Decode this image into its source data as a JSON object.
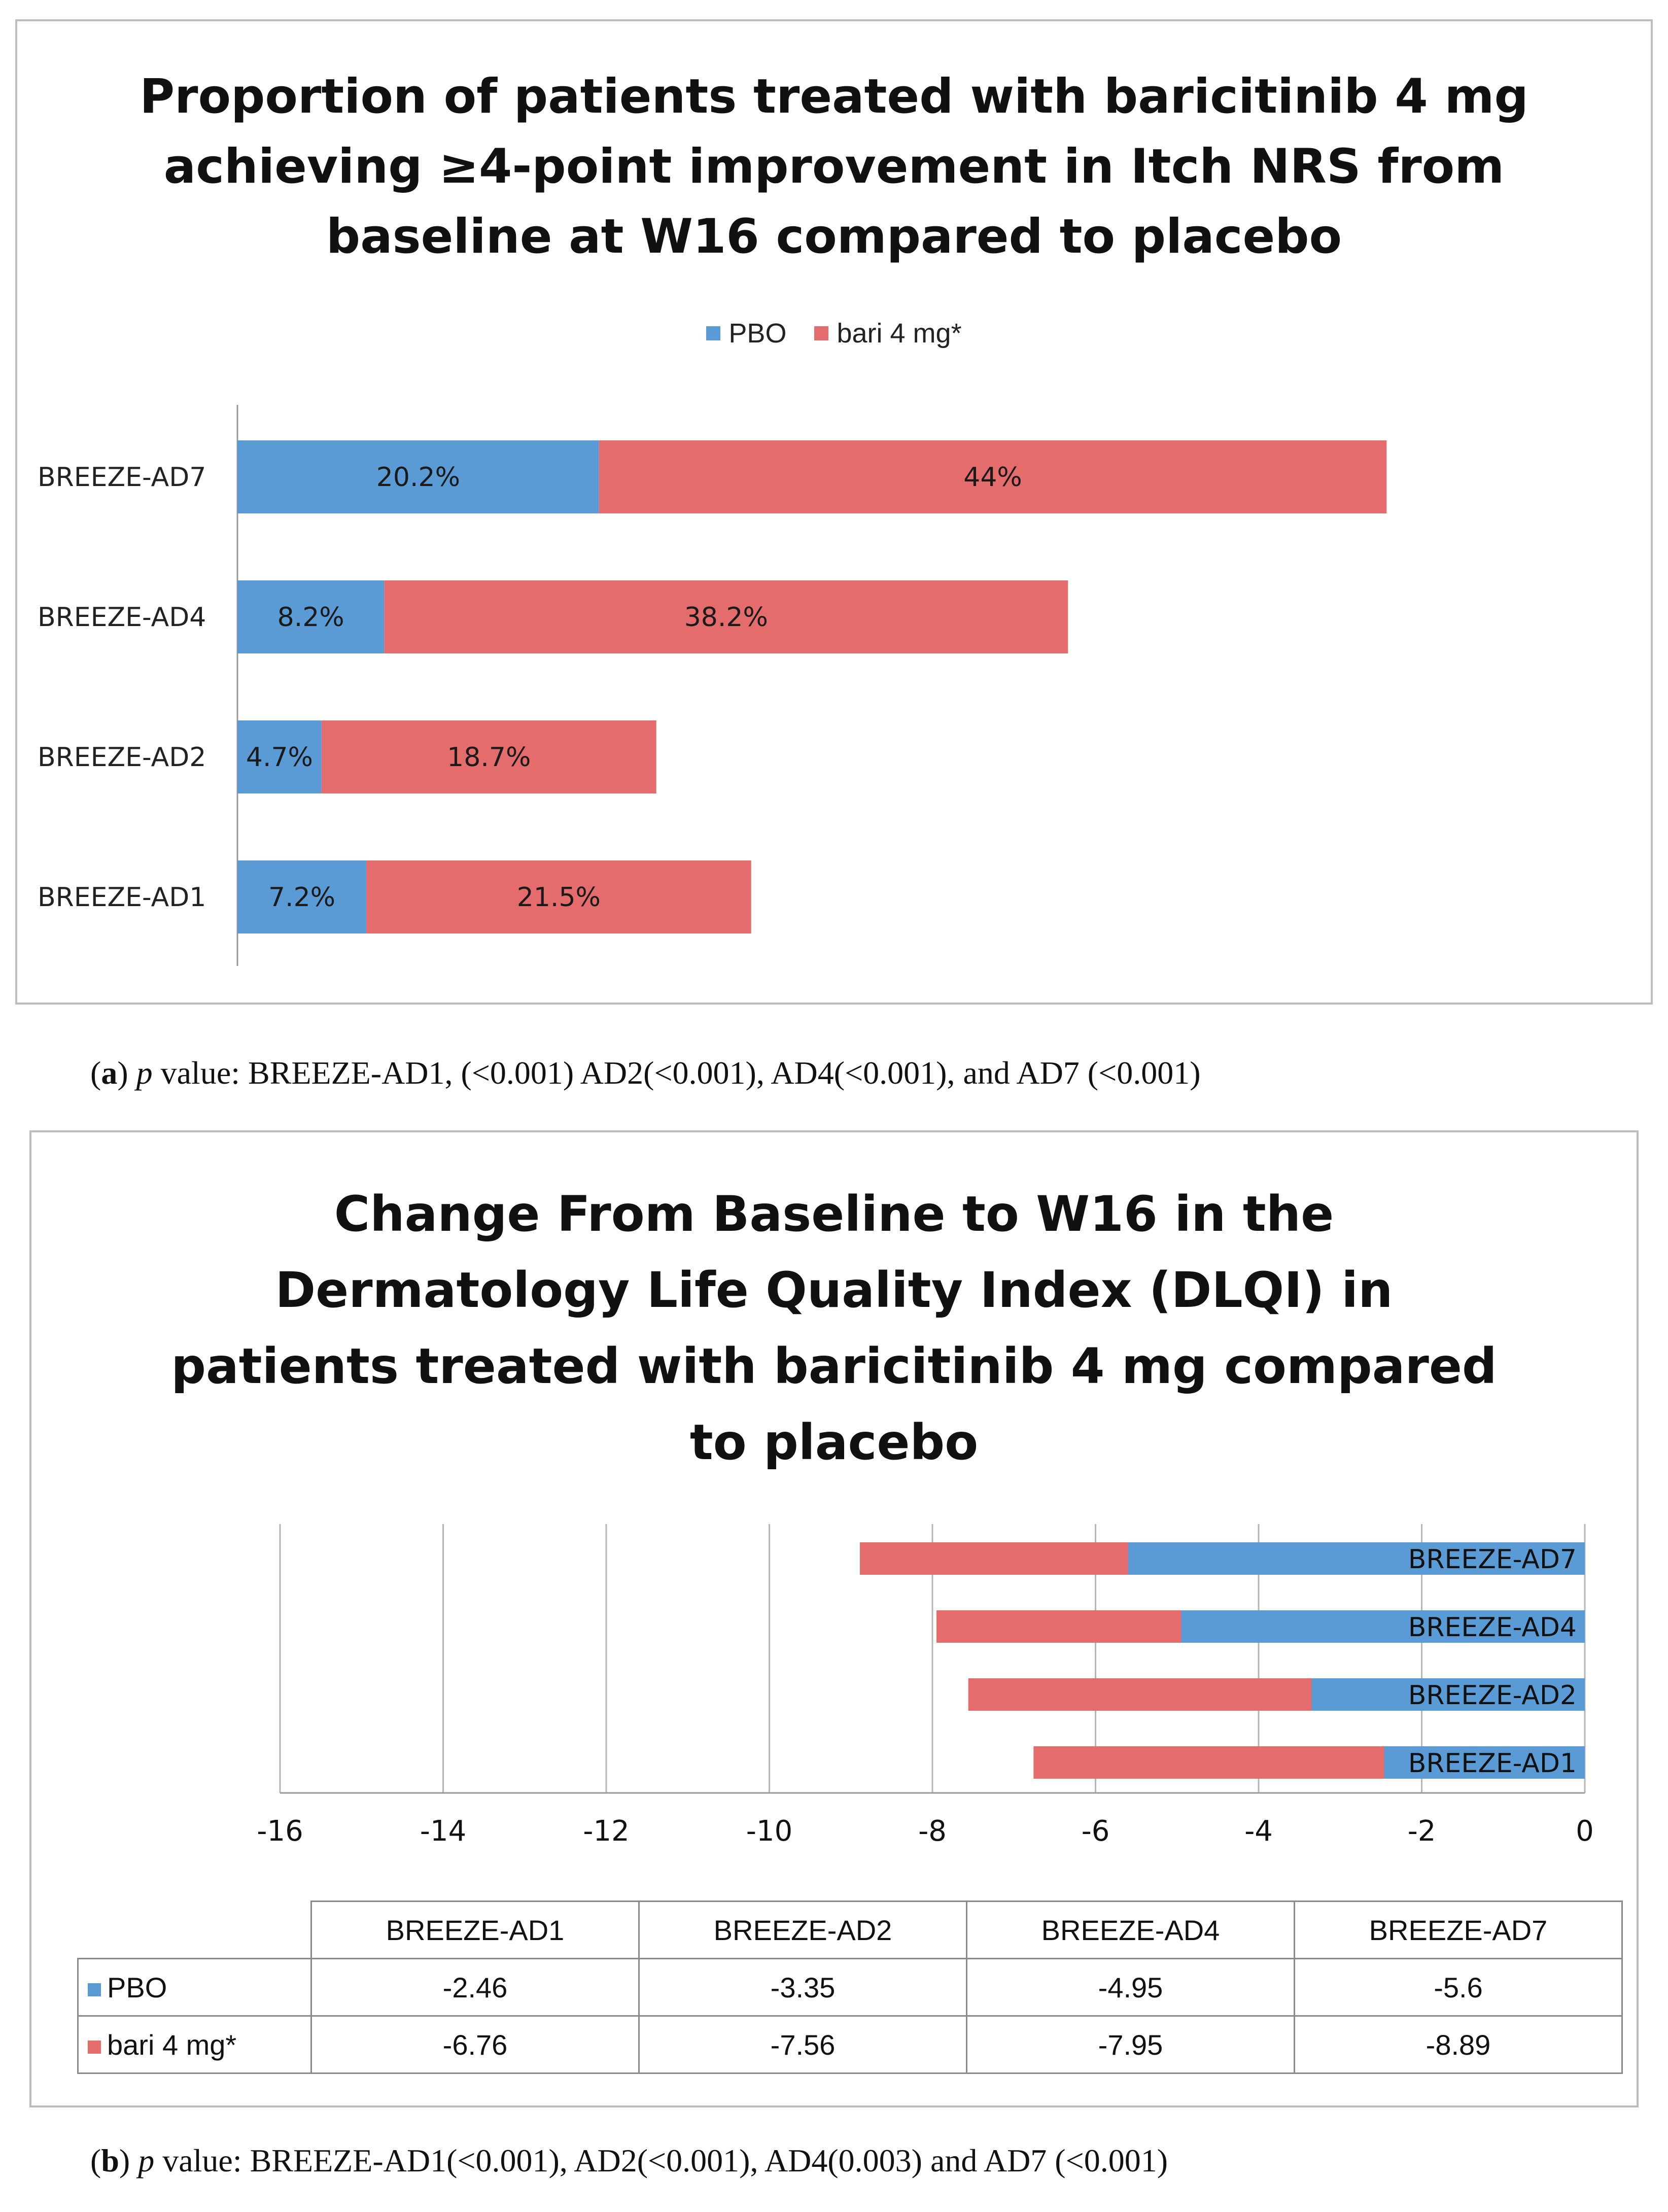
{
  "colors": {
    "pbo": "#5b9bd5",
    "bari": "#e46c6c"
  },
  "panel_a": {
    "title_lines": [
      "Proportion of patients treated with baricitinib  4 mg",
      "achieving ≥4-point improvement in Itch NRS from",
      "baseline at W16 compared to placebo"
    ],
    "legend": {
      "pbo": "PBO",
      "bari": "bari 4 mg*"
    },
    "caption": {
      "letter": "a",
      "p_label": "p",
      "text": " value: BREEZE-AD1, (<0.001) AD2(<0.001), AD4(<0.001), and AD7 (<0.001)"
    }
  },
  "panel_b": {
    "title_lines": [
      "Change From Baseline to W16 in the",
      "Dermatology Life Quality Index (DLQI) in",
      "patients treated with baricitinib 4 mg compared",
      "to placebo"
    ],
    "table": {
      "headers": [
        "BREEZE-AD1",
        "BREEZE-AD2",
        "BREEZE-AD4",
        "BREEZE-AD7"
      ],
      "rows": [
        {
          "label": "PBO",
          "values": [
            "-2.46",
            "-3.35",
            "-4.95",
            "-5.6"
          ]
        },
        {
          "label": "bari 4 mg*",
          "values": [
            "-6.76",
            "-7.56",
            "-7.95",
            "-8.89"
          ]
        }
      ]
    },
    "caption": {
      "letter": "b",
      "p_label": "p",
      "text": " value: BREEZE-AD1(<0.001), AD2(<0.001), AD4(0.003) and AD7 (<0.001)"
    }
  },
  "chart_data": [
    {
      "type": "bar",
      "orientation": "horizontal",
      "stacked": true,
      "title": "Proportion of patients treated with baricitinib  4 mg achieving ≥4-point improvement in Itch NRS from baseline at W16 compared to placebo",
      "categories": [
        "BREEZE-AD7",
        "BREEZE-AD4",
        "BREEZE-AD2",
        "BREEZE-AD1"
      ],
      "series": [
        {
          "name": "PBO",
          "values": [
            20.2,
            8.2,
            4.7,
            7.2
          ],
          "labels": [
            "20.2%",
            "8.2%",
            "4.7%",
            "7.2%"
          ]
        },
        {
          "name": "bari 4 mg*",
          "values": [
            44,
            38.2,
            18.7,
            21.5
          ],
          "labels": [
            "44%",
            "38.2%",
            "18.7%",
            "21.5%"
          ]
        }
      ],
      "xlim": [
        0,
        70
      ],
      "legend": "top",
      "grid": false
    },
    {
      "type": "bar",
      "orientation": "horizontal",
      "stacked": true,
      "title": "Change From Baseline to W16 in the Dermatology Life Quality Index (DLQI) in patients treated with baricitinib 4 mg compared to placebo",
      "categories": [
        "BREEZE-AD7",
        "BREEZE-AD4",
        "BREEZE-AD2",
        "BREEZE-AD1"
      ],
      "series": [
        {
          "name": "PBO",
          "values": [
            -5.6,
            -4.95,
            -3.35,
            -2.46
          ]
        },
        {
          "name": "bari 4 mg*",
          "values": [
            -8.89,
            -7.95,
            -7.56,
            -6.76
          ]
        }
      ],
      "xlim": [
        -16,
        0
      ],
      "xticks": [
        -16,
        -14,
        -12,
        -10,
        -8,
        -6,
        -4,
        -2,
        0
      ],
      "xtick_labels": [
        "-16",
        "-14",
        "-12",
        "-10",
        "-8",
        "-6",
        "-4",
        "-2",
        "0"
      ],
      "grid": true,
      "legend": "data-table"
    }
  ]
}
